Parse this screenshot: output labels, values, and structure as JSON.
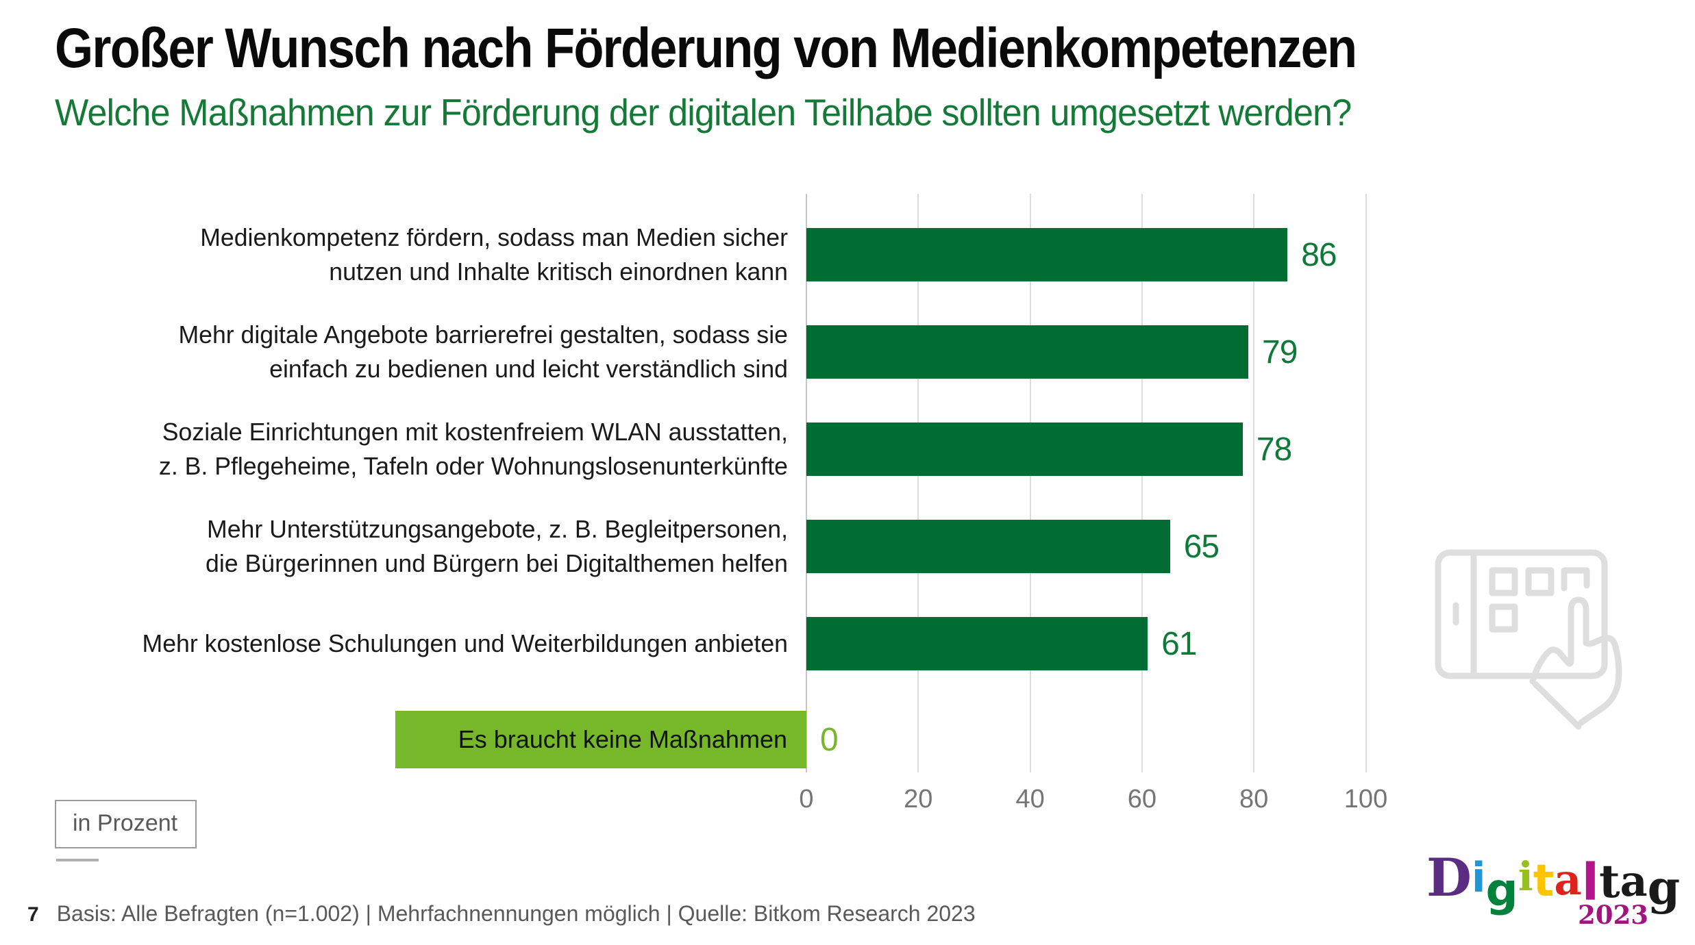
{
  "header": {
    "title": "Großer Wunsch nach Förderung von Medienkompetenzen",
    "subtitle": "Welche Maßnahmen zur Förderung der digitalen Teilhabe sollten umgesetzt werden?"
  },
  "chart_data": {
    "type": "bar",
    "orientation": "horizontal",
    "unit_label": "in Prozent",
    "categories": [
      [
        "Medienkompetenz fördern, sodass man Medien sicher",
        "nutzen und Inhalte kritisch einordnen kann"
      ],
      [
        "Mehr digitale Angebote barrierefrei gestalten, sodass sie",
        "einfach zu bedienen und leicht verständlich sind"
      ],
      [
        "Soziale Einrichtungen mit kostenfreiem WLAN ausstatten,",
        "z. B. Pflegeheime, Tafeln oder Wohnungslosenunterkünfte"
      ],
      [
        "Mehr Unterstützungsangebote, z. B. Begleitpersonen,",
        "die Bürgerinnen und Bürgern bei Digitalthemen helfen"
      ],
      [
        "Mehr kostenlose Schulungen und Weiterbildungen anbieten"
      ],
      [
        "Es braucht keine Maßnahmen"
      ]
    ],
    "values": [
      86,
      79,
      78,
      65,
      61,
      0
    ],
    "highlight_index": 5,
    "xlim": [
      0,
      100
    ],
    "xticks": [
      0,
      20,
      40,
      60,
      80,
      100
    ],
    "grid": "vertical",
    "colors": {
      "bar": "#006e33",
      "highlight": "#76b82a",
      "value_label": "#0e7a3a",
      "subtitle_green": "#157a38",
      "gridline": "#dcdcdc",
      "tick_text": "#757575"
    }
  },
  "footer": {
    "page_number": "7",
    "source": "Basis: Alle Befragten (n=1.002) | Mehrfachnennungen möglich | Quelle: Bitkom Research 2023"
  },
  "logo": {
    "letters": [
      {
        "ch": "D",
        "color": "#5b2d82"
      },
      {
        "ch": "i",
        "color": "#2196d4"
      },
      {
        "ch": "g",
        "color": "#00813c"
      },
      {
        "ch": "i",
        "color": "#95c11f"
      },
      {
        "ch": "t",
        "color": "#fdc500"
      },
      {
        "ch": "a",
        "color": "#dd231c"
      },
      {
        "ch": "l",
        "color": "#b5138b"
      },
      {
        "ch": "t",
        "color": "#1a1a1a"
      },
      {
        "ch": "a",
        "color": "#1a1a1a"
      },
      {
        "ch": "g",
        "color": "#1a1a1a"
      }
    ],
    "year": "2023",
    "year_color": "#a3157e"
  },
  "icons": {
    "watermark": "tablet-touch-icon"
  }
}
